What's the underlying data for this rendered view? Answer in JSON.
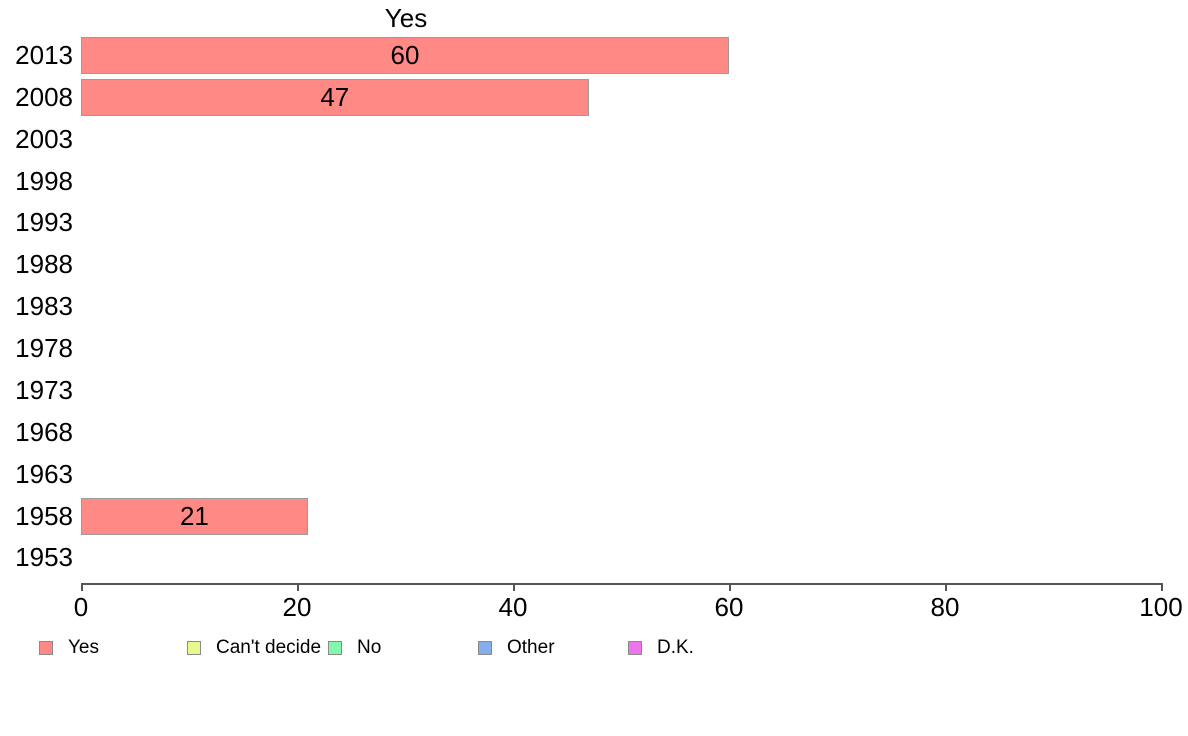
{
  "chart_data": {
    "type": "bar",
    "orientation": "horizontal",
    "title": "Yes",
    "categories": [
      "2013",
      "2008",
      "2003",
      "1998",
      "1993",
      "1988",
      "1983",
      "1978",
      "1973",
      "1968",
      "1963",
      "1958",
      "1953"
    ],
    "values": [
      60,
      47,
      null,
      null,
      null,
      null,
      null,
      null,
      null,
      null,
      null,
      21,
      null
    ],
    "xlabel": "",
    "ylabel": "",
    "xlim": [
      0,
      100
    ],
    "x_ticks": [
      0,
      20,
      40,
      60,
      80,
      100
    ],
    "grid": false,
    "bar_color": "#FF8A85",
    "bar_border_color": "#9C9C9C",
    "legend_position": "bottom",
    "legend": [
      {
        "label": "Yes",
        "color": "#FF8A85"
      },
      {
        "label": "Can't decide",
        "color": "#E9F78F"
      },
      {
        "label": "No",
        "color": "#83F7AC"
      },
      {
        "label": "Other",
        "color": "#86ADEB"
      },
      {
        "label": "D.K.",
        "color": "#EC75EC"
      }
    ]
  }
}
